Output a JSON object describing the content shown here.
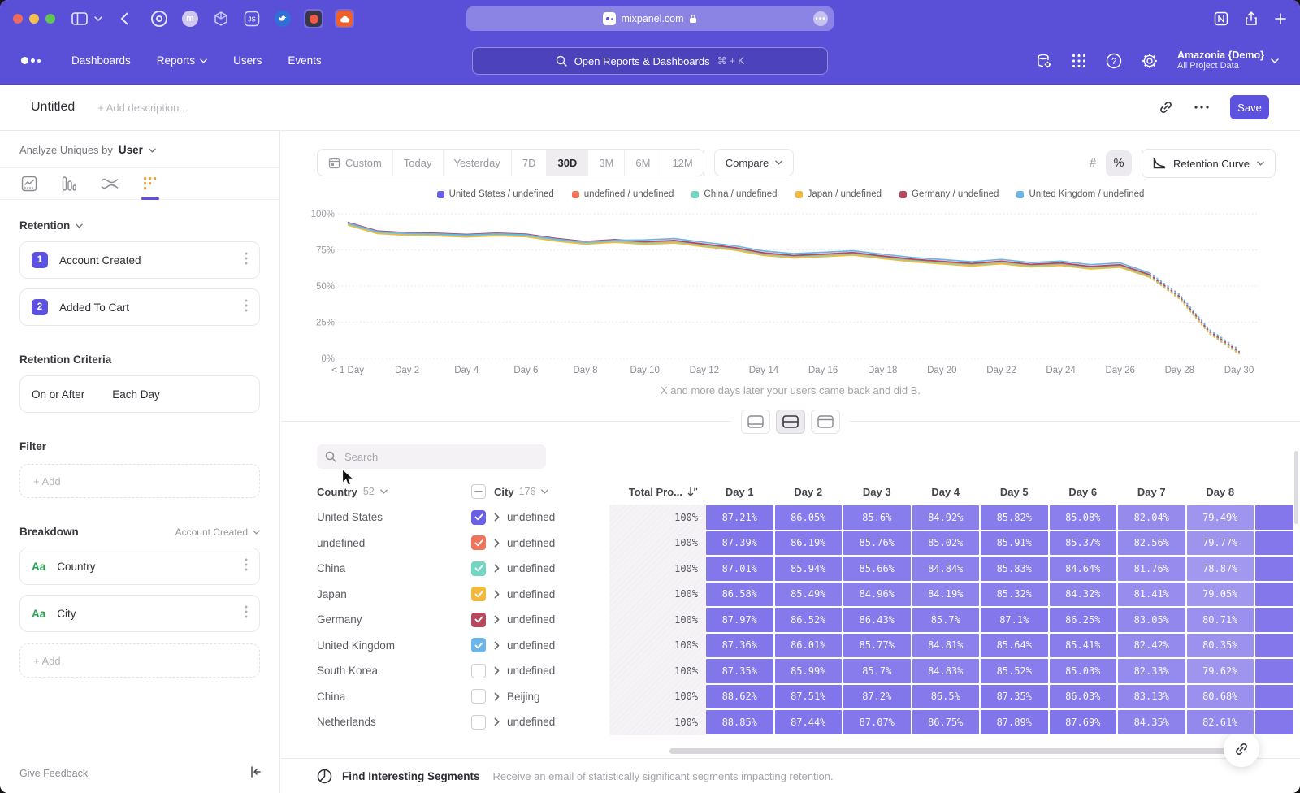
{
  "browser": {
    "url": "mixpanel.com",
    "extensions": [
      {
        "name": "target-extension-icon",
        "glyph": ""
      },
      {
        "name": "m-avatar-extension-icon",
        "glyph": "m"
      },
      {
        "name": "cube-extension-icon",
        "glyph": ""
      },
      {
        "name": "js-extension-icon",
        "glyph": "JS"
      },
      {
        "name": "bird-extension-icon",
        "glyph": ""
      },
      {
        "name": "red-dot-extension-icon",
        "glyph": ""
      },
      {
        "name": "cloud-extension-icon",
        "glyph": ""
      }
    ]
  },
  "nav": {
    "items": [
      {
        "label": "Dashboards",
        "chevron": false
      },
      {
        "label": "Reports",
        "chevron": true
      },
      {
        "label": "Users",
        "chevron": false
      },
      {
        "label": "Events",
        "chevron": false
      }
    ],
    "search_placeholder": "Open Reports & Dashboards",
    "search_shortcut": "⌘ + K",
    "project_name": "Amazonia {Demo}",
    "project_subtitle": "All Project Data"
  },
  "header": {
    "title": "Untitled",
    "description_placeholder": "+ Add description...",
    "save_label": "Save"
  },
  "sidebar": {
    "analyze_label": "Analyze Uniques by",
    "analyze_value": "User",
    "section_label": "Retention",
    "steps": [
      {
        "num": "1",
        "label": "Account Created"
      },
      {
        "num": "2",
        "label": "Added To Cart"
      }
    ],
    "criteria_label": "Retention Criteria",
    "criteria_left": "On or After",
    "criteria_right": "Each Day",
    "filter_label": "Filter",
    "add_label": "+ Add",
    "breakdown_label": "Breakdown",
    "breakdown_event": "Account Created",
    "breakdowns": [
      {
        "type": "Aa",
        "label": "Country"
      },
      {
        "type": "Aa",
        "label": "City"
      }
    ],
    "feedback_label": "Give Feedback"
  },
  "toolbar": {
    "ranges": [
      "Custom",
      "Today",
      "Yesterday",
      "7D",
      "30D",
      "3M",
      "6M",
      "12M"
    ],
    "active_range": "30D",
    "compare_label": "Compare",
    "number_toggle": "#",
    "percent_toggle": "%",
    "view_label": "Retention Curve"
  },
  "chart_data": {
    "type": "line",
    "caption": "X and more days later your users came back and did B.",
    "y_ticks": [
      "100%",
      "75%",
      "50%",
      "25%",
      "0%"
    ],
    "ylim": [
      0,
      100
    ],
    "x_tick_labels": [
      "< 1 Day",
      "Day 2",
      "Day 4",
      "Day 6",
      "Day 8",
      "Day 10",
      "Day 12",
      "Day 14",
      "Day 16",
      "Day 18",
      "Day 20",
      "Day 22",
      "Day 24",
      "Day 26",
      "Day 28",
      "Day 30"
    ],
    "solid_until_index": 27,
    "series": [
      {
        "name": "United States / undefined",
        "color": "#6a5fe8",
        "values": [
          93.2,
          87.3,
          86.1,
          85.7,
          84.9,
          85.8,
          85.1,
          82.1,
          80.0,
          81.3,
          79.9,
          80.8,
          78.2,
          75.9,
          72.2,
          70.4,
          71.3,
          72.4,
          70.0,
          67.8,
          66.3,
          64.8,
          66.4,
          64.2,
          65.2,
          62.8,
          64.0,
          57.0,
          42.0,
          18.0,
          4.0
        ]
      },
      {
        "name": "undefined / undefined",
        "color": "#f0735a",
        "values": [
          93.4,
          87.5,
          86.3,
          85.9,
          85.1,
          86.0,
          85.3,
          82.3,
          80.2,
          81.5,
          80.1,
          81.0,
          78.4,
          76.1,
          72.4,
          70.6,
          71.5,
          72.6,
          70.2,
          68.0,
          66.5,
          65.0,
          66.6,
          64.4,
          65.4,
          63.0,
          64.2,
          57.4,
          42.4,
          18.4,
          4.4
        ]
      },
      {
        "name": "China / undefined",
        "color": "#72d6c3",
        "values": [
          92.8,
          86.9,
          85.7,
          85.3,
          84.5,
          85.4,
          84.7,
          81.7,
          79.6,
          80.9,
          79.5,
          80.4,
          77.8,
          75.5,
          71.8,
          70.0,
          70.9,
          72.0,
          69.6,
          67.4,
          65.9,
          64.4,
          66.0,
          63.8,
          64.8,
          62.4,
          63.6,
          56.6,
          41.6,
          17.6,
          3.6
        ]
      },
      {
        "name": "Japan / undefined",
        "color": "#f2b93f",
        "values": [
          92.2,
          86.3,
          85.1,
          84.7,
          83.9,
          84.8,
          84.1,
          81.1,
          79.0,
          80.3,
          78.9,
          79.8,
          77.2,
          74.9,
          71.2,
          69.4,
          70.3,
          71.4,
          69.0,
          66.8,
          65.3,
          63.8,
          65.4,
          63.2,
          64.2,
          61.8,
          63.0,
          56.0,
          41.0,
          17.0,
          3.0
        ]
      },
      {
        "name": "Germany / undefined",
        "color": "#b5495e",
        "values": [
          94.0,
          88.1,
          86.9,
          86.5,
          85.7,
          86.6,
          85.9,
          82.9,
          80.8,
          82.1,
          80.7,
          81.6,
          79.0,
          76.7,
          73.0,
          71.2,
          72.1,
          73.2,
          70.8,
          68.6,
          67.1,
          65.6,
          67.2,
          65.0,
          66.0,
          63.6,
          64.8,
          57.8,
          42.8,
          18.8,
          4.8
        ]
      },
      {
        "name": "United Kingdom / undefined",
        "color": "#6cb5e9",
        "values": [
          93.5,
          87.6,
          86.4,
          86.0,
          85.2,
          86.1,
          85.4,
          82.4,
          80.3,
          81.6,
          81.9,
          82.8,
          80.2,
          77.9,
          74.2,
          72.4,
          73.3,
          74.4,
          72.0,
          69.8,
          68.3,
          66.8,
          68.4,
          66.2,
          67.2,
          64.8,
          66.0,
          59.0,
          44.0,
          20.0,
          6.0
        ]
      }
    ]
  },
  "table": {
    "search_placeholder": "Search",
    "country_header": "Country",
    "country_count": "52",
    "city_header": "City",
    "city_count": "176",
    "total_header": "Total Pro...",
    "day_headers": [
      "Day 1",
      "Day 2",
      "Day 3",
      "Day 4",
      "Day 5",
      "Day 6",
      "Day 7",
      "Day 8"
    ],
    "rows": [
      {
        "country": "United States",
        "city": "undefined",
        "checked": true,
        "color": "#6a5fe8",
        "total": "100%",
        "values": [
          "87.21%",
          "86.05%",
          "85.6%",
          "84.92%",
          "85.82%",
          "85.08%",
          "82.04%",
          "79.49%"
        ]
      },
      {
        "country": "undefined",
        "city": "undefined",
        "checked": true,
        "color": "#f0735a",
        "total": "100%",
        "values": [
          "87.39%",
          "86.19%",
          "85.76%",
          "85.02%",
          "85.91%",
          "85.37%",
          "82.56%",
          "79.77%"
        ]
      },
      {
        "country": "China",
        "city": "undefined",
        "checked": true,
        "color": "#72d6c3",
        "total": "100%",
        "values": [
          "87.01%",
          "85.94%",
          "85.66%",
          "84.84%",
          "85.83%",
          "84.64%",
          "81.76%",
          "78.87%"
        ]
      },
      {
        "country": "Japan",
        "city": "undefined",
        "checked": true,
        "color": "#f2b93f",
        "total": "100%",
        "values": [
          "86.58%",
          "85.49%",
          "84.96%",
          "84.19%",
          "85.32%",
          "84.32%",
          "81.41%",
          "79.05%"
        ]
      },
      {
        "country": "Germany",
        "city": "undefined",
        "checked": true,
        "color": "#b5495e",
        "total": "100%",
        "values": [
          "87.97%",
          "86.52%",
          "86.43%",
          "85.7%",
          "87.1%",
          "86.25%",
          "83.05%",
          "80.71%"
        ]
      },
      {
        "country": "United Kingdom",
        "city": "undefined",
        "checked": true,
        "color": "#6cb5e9",
        "total": "100%",
        "values": [
          "87.36%",
          "86.01%",
          "85.77%",
          "84.81%",
          "85.64%",
          "85.41%",
          "82.42%",
          "80.35%"
        ]
      },
      {
        "country": "South Korea",
        "city": "undefined",
        "checked": false,
        "color": null,
        "total": "100%",
        "values": [
          "87.35%",
          "85.99%",
          "85.7%",
          "84.83%",
          "85.52%",
          "85.03%",
          "82.33%",
          "79.62%"
        ]
      },
      {
        "country": "China",
        "city": "Beijing",
        "checked": false,
        "color": null,
        "total": "100%",
        "values": [
          "88.62%",
          "87.51%",
          "87.2%",
          "86.5%",
          "87.35%",
          "86.03%",
          "83.13%",
          "80.68%"
        ]
      },
      {
        "country": "Netherlands",
        "city": "undefined",
        "checked": false,
        "color": null,
        "total": "100%",
        "values": [
          "88.85%",
          "87.44%",
          "87.07%",
          "86.75%",
          "87.89%",
          "87.69%",
          "84.35%",
          "82.61%"
        ]
      }
    ]
  },
  "footer": {
    "title": "Find Interesting Segments",
    "subtitle": "Receive an email of statistically significant segments impacting retention."
  }
}
